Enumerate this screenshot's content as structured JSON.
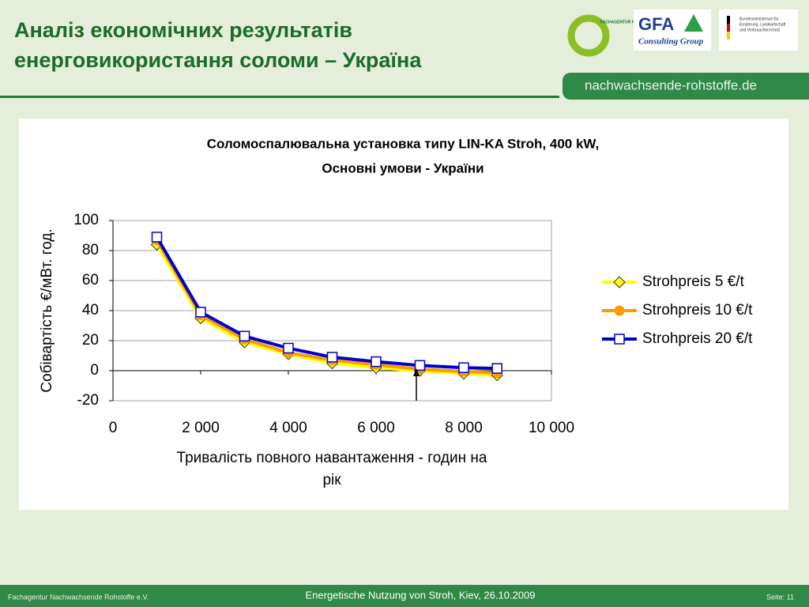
{
  "header": {
    "title_lines": [
      "Аналіз економічних результатів",
      "енерговикористання соломи – Україна"
    ],
    "logo_fnr": "FACHAGENTUR NACHWACHSENDE ROHSTOFFE e.V.",
    "logo_gfa": "GFA",
    "logo_gfa_sub": "Consulting Group",
    "logo_bmelv": [
      "Bundesministerium für",
      "Ernährung, Landwirtschaft",
      "und Verbraucherschutz"
    ],
    "site": "nachwachsende-rohstoffe.de"
  },
  "chart_data": {
    "type": "line",
    "title_lines": [
      "Соломоспалювальна установка типу LIN-KA Stroh, 400 kW,",
      "Основні умови - України"
    ],
    "ylabel": "Собівартість €/мВт. год.",
    "xlabel_lines": [
      "Тривалість повного навантаження -  годин на",
      "рік"
    ],
    "x": [
      1000,
      2000,
      3000,
      4000,
      5000,
      6000,
      7000,
      8000,
      8760
    ],
    "series": [
      {
        "name": "Strohpreis 5 €/t",
        "color": "#ffff00",
        "marker": "diamond",
        "values": [
          84,
          35,
          19,
          11,
          5,
          2,
          0,
          -2,
          -3
        ]
      },
      {
        "name": "Strohpreis 10 €/t",
        "color": "#ff9900",
        "marker": "circle",
        "values": [
          87,
          37,
          21,
          12,
          7,
          4,
          1,
          -0.5,
          -1.5
        ]
      },
      {
        "name": "Strohpreis 20 €/t",
        "color": "#0000cc",
        "marker": "square",
        "values": [
          89,
          39,
          23,
          15,
          9,
          6,
          3.5,
          2,
          1.5
        ]
      }
    ],
    "xlim": [
      0,
      10000
    ],
    "xticks": [
      0,
      {
        "value": 2000,
        "label": "2 000"
      },
      {
        "value": 4000,
        "label": "4 000"
      },
      {
        "value": 6000,
        "label": "6 000"
      },
      {
        "value": 8000,
        "label": "8 000"
      },
      {
        "value": 10000,
        "label": "10 000"
      }
    ],
    "ylim": [
      -20,
      100
    ],
    "yticks": [
      -20,
      0,
      20,
      40,
      60,
      80,
      100
    ],
    "grid": true,
    "legend": "right"
  },
  "footer": {
    "left": "Fachagentur Nachwachsende Rohstoffe e.V.",
    "center": "Energetische Nutzung von Stroh, Kiev, 26.10.2009",
    "right": "Seite: 11"
  }
}
